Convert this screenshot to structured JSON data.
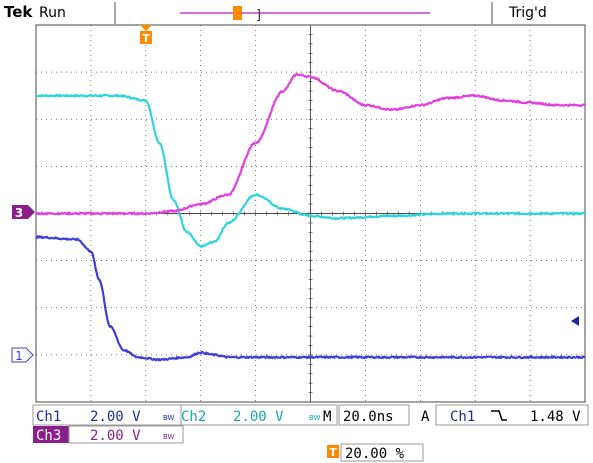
{
  "header": {
    "brand": "Tek",
    "acq_state": "Run",
    "trigger_status": "Trig'd"
  },
  "markers": {
    "trigger_marker": "T",
    "ch3_marker": "3",
    "ch1_marker": "1"
  },
  "readouts": {
    "ch1_label": "Ch1",
    "ch1_scale": "2.00 V",
    "ch2_label": "Ch2",
    "ch2_scale": "2.00 V",
    "ch3_label": "Ch3",
    "ch3_scale": "2.00 V",
    "bw_symbol": "BW",
    "timebase_prefix": "M",
    "timebase": "20.0ns",
    "trigger_mode": "A",
    "trigger_source": "Ch1",
    "trigger_slope_icon": "falling-edge-icon",
    "trigger_level": "1.48 V",
    "trigger_position_icon": "T",
    "trigger_position": "20.00 %"
  },
  "colors": {
    "ch1": "#3e3ed6",
    "ch2": "#2fd3dc",
    "ch3": "#e040e0",
    "grid": "#4a4a4a",
    "trigger": "#ff8a00",
    "ch3_badge": "#8a1f8a"
  },
  "chart_data": {
    "type": "line",
    "x_unit": "ns",
    "x_range": [
      -40,
      160
    ],
    "y_unit": "divisions",
    "y_range": [
      -4,
      4
    ],
    "series": [
      {
        "channel": "Ch2",
        "x": [
          -40,
          -10,
          0,
          5,
          10,
          15,
          20,
          25,
          30,
          40,
          50,
          60,
          70,
          90,
          110,
          160
        ],
        "y": [
          2.5,
          2.5,
          2.4,
          1.5,
          0.3,
          -0.4,
          -0.7,
          -0.6,
          -0.2,
          0.4,
          0.1,
          -0.05,
          -0.1,
          -0.05,
          0.0,
          0.0
        ]
      },
      {
        "channel": "Ch3",
        "x": [
          -40,
          0,
          10,
          20,
          30,
          40,
          50,
          55,
          60,
          70,
          80,
          90,
          100,
          110,
          120,
          130,
          140,
          150,
          160
        ],
        "y": [
          0.0,
          0.0,
          0.05,
          0.2,
          0.4,
          1.5,
          2.6,
          2.95,
          2.9,
          2.6,
          2.3,
          2.2,
          2.3,
          2.45,
          2.5,
          2.4,
          2.35,
          2.3,
          2.3
        ]
      },
      {
        "channel": "Ch1",
        "x": [
          -40,
          -25,
          -20,
          -17,
          -13,
          -8,
          -3,
          5,
          15,
          20,
          25,
          30,
          40,
          60,
          100,
          160
        ],
        "y": [
          2.5,
          2.45,
          2.2,
          1.6,
          0.6,
          0.1,
          -0.05,
          -0.1,
          -0.05,
          0.05,
          0.0,
          -0.05,
          -0.05,
          -0.05,
          -0.05,
          -0.05
        ]
      }
    ]
  }
}
